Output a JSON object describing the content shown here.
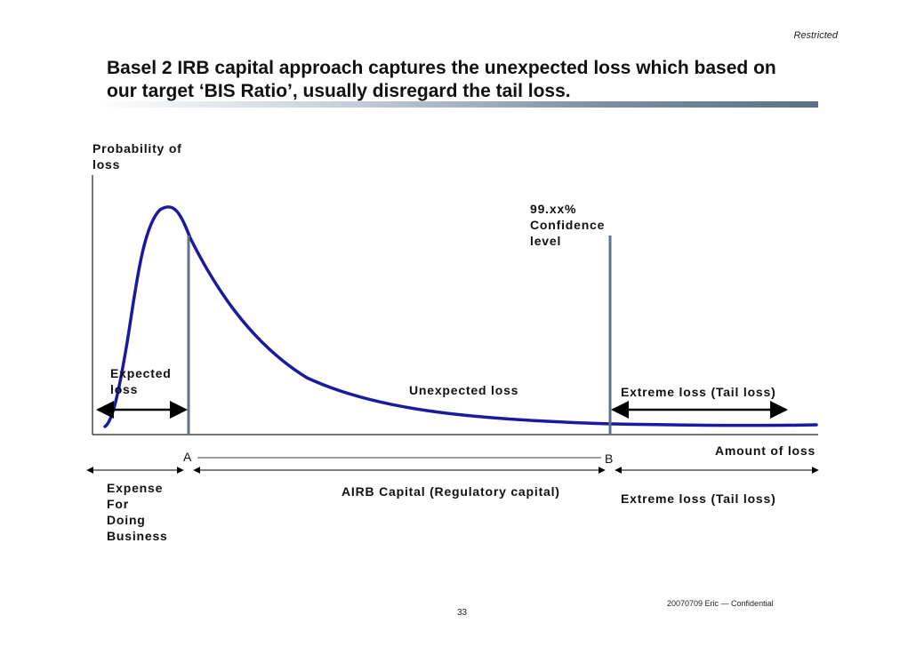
{
  "header": {
    "restricted": "Restricted",
    "title_line1": "Basel 2 IRB capital approach captures the unexpected loss which based on",
    "title_line2": "our target ‘BIS Ratio’, usually disregard the tail loss."
  },
  "diagram": {
    "y_axis_label_line1": "Probability of",
    "y_axis_label_line2": "loss",
    "x_axis_label": "Amount of loss",
    "confidence_line1": "99.xx%",
    "confidence_line2": "Confidence",
    "confidence_line3": "level",
    "expected_loss_line1": "Expected",
    "expected_loss_line2": "loss",
    "unexpected_loss": "Unexpected loss",
    "extreme_loss_upper": "Extreme loss (Tail loss)",
    "marker_a": "A",
    "marker_b": "B",
    "expense_line1": "Expense",
    "expense_line2": "For",
    "expense_line3": "Doing",
    "expense_line4": "Business",
    "airb_capital": "AIRB Capital (Regulatory capital)",
    "extreme_loss_lower": "Extreme loss (Tail loss)",
    "colors": {
      "curve": "#1a1aa0",
      "markers": "#5d7388",
      "axis": "#222222"
    }
  },
  "footer": {
    "confidential": "20070709 Eric — Confidential",
    "page_number": "33"
  }
}
